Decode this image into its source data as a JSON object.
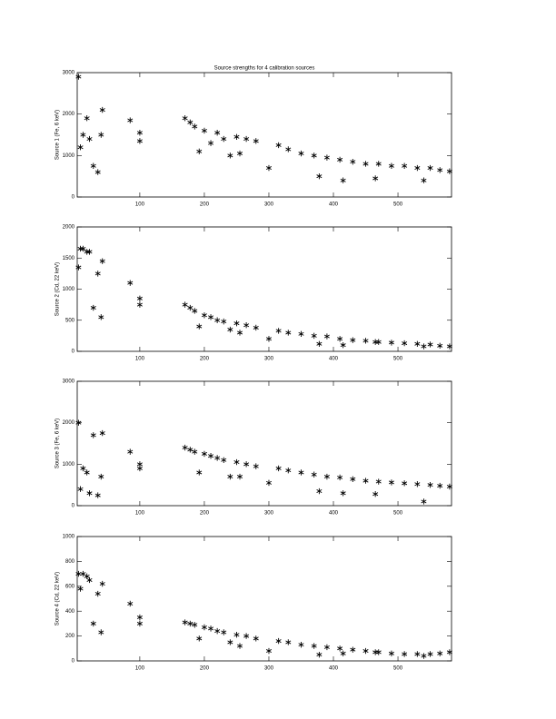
{
  "chart_data": [
    {
      "type": "scatter",
      "title": "Source strengths for 4 calibration sources",
      "y_label": "Source 1 (Fe, 6 keV)",
      "x": [
        5,
        8,
        12,
        18,
        22,
        28,
        35,
        40,
        42,
        85,
        100,
        100,
        170,
        178,
        185,
        192,
        200,
        210,
        220,
        230,
        240,
        250,
        255,
        265,
        280,
        300,
        315,
        330,
        350,
        370,
        378,
        390,
        410,
        415,
        430,
        450,
        465,
        470,
        490,
        510,
        530,
        540,
        550,
        565,
        580
      ],
      "values": [
        2900,
        1200,
        1500,
        1900,
        1400,
        750,
        600,
        1500,
        2100,
        1850,
        1550,
        1350,
        1900,
        1800,
        1700,
        1100,
        1600,
        1300,
        1550,
        1400,
        1000,
        1450,
        1050,
        1400,
        1350,
        700,
        1250,
        1150,
        1050,
        1000,
        500,
        950,
        900,
        400,
        850,
        800,
        450,
        800,
        750,
        750,
        700,
        400,
        700,
        650,
        620
      ],
      "xlim": [
        3,
        583
      ],
      "xticks": [
        100,
        200,
        300,
        400,
        500
      ],
      "ylim": [
        0,
        3000
      ],
      "yticks": [
        0,
        1000,
        2000,
        3000
      ],
      "color": "#000000"
    },
    {
      "type": "scatter",
      "y_label": "Source 2 (Cd, 22 keV)",
      "x": [
        5,
        8,
        12,
        18,
        22,
        28,
        35,
        40,
        42,
        85,
        100,
        100,
        170,
        178,
        185,
        192,
        200,
        210,
        220,
        230,
        240,
        250,
        255,
        265,
        280,
        300,
        315,
        330,
        350,
        370,
        378,
        390,
        410,
        415,
        430,
        450,
        465,
        470,
        490,
        510,
        530,
        540,
        550,
        565,
        580
      ],
      "values": [
        1350,
        1650,
        1650,
        1600,
        1600,
        700,
        1250,
        550,
        1450,
        1100,
        850,
        750,
        750,
        700,
        650,
        400,
        580,
        550,
        500,
        480,
        350,
        450,
        300,
        420,
        380,
        200,
        330,
        300,
        280,
        250,
        120,
        240,
        200,
        100,
        180,
        170,
        150,
        150,
        140,
        130,
        120,
        80,
        110,
        90,
        80
      ],
      "xlim": [
        3,
        583
      ],
      "xticks": [
        100,
        200,
        300,
        400,
        500
      ],
      "ylim": [
        0,
        2000
      ],
      "yticks": [
        0,
        500,
        1000,
        1500,
        2000
      ],
      "color": "#000000"
    },
    {
      "type": "scatter",
      "y_label": "Source 3 (Fe, 6 keV)",
      "x": [
        5,
        8,
        12,
        18,
        22,
        28,
        35,
        40,
        42,
        85,
        100,
        100,
        170,
        178,
        185,
        192,
        200,
        210,
        220,
        230,
        240,
        250,
        255,
        265,
        280,
        300,
        315,
        330,
        350,
        370,
        378,
        390,
        410,
        415,
        430,
        450,
        465,
        470,
        490,
        510,
        530,
        540,
        550,
        565,
        580
      ],
      "values": [
        2000,
        400,
        900,
        800,
        300,
        1700,
        250,
        700,
        1750,
        1300,
        1000,
        900,
        1400,
        1350,
        1300,
        800,
        1250,
        1200,
        1150,
        1100,
        700,
        1050,
        700,
        1000,
        950,
        550,
        900,
        850,
        800,
        750,
        350,
        700,
        680,
        300,
        640,
        600,
        280,
        580,
        560,
        540,
        520,
        100,
        500,
        480,
        460
      ],
      "xlim": [
        3,
        583
      ],
      "xticks": [
        100,
        200,
        300,
        400,
        500
      ],
      "ylim": [
        0,
        3000
      ],
      "yticks": [
        0,
        1000,
        2000,
        3000
      ],
      "color": "#000000"
    },
    {
      "type": "scatter",
      "y_label": "Source 4 (Cd, 22 keV)",
      "x": [
        5,
        8,
        12,
        18,
        22,
        28,
        35,
        40,
        42,
        85,
        100,
        100,
        170,
        178,
        185,
        192,
        200,
        210,
        220,
        230,
        240,
        250,
        255,
        265,
        280,
        300,
        315,
        330,
        350,
        370,
        378,
        390,
        410,
        415,
        430,
        450,
        465,
        470,
        490,
        510,
        530,
        540,
        550,
        565,
        580
      ],
      "values": [
        700,
        580,
        700,
        680,
        650,
        300,
        540,
        230,
        620,
        460,
        350,
        300,
        310,
        300,
        290,
        180,
        270,
        260,
        240,
        230,
        150,
        210,
        120,
        200,
        180,
        80,
        160,
        150,
        130,
        120,
        50,
        110,
        100,
        60,
        90,
        80,
        70,
        70,
        60,
        55,
        55,
        40,
        55,
        60,
        70
      ],
      "xlim": [
        3,
        583
      ],
      "xticks": [
        100,
        200,
        300,
        400,
        500
      ],
      "ylim": [
        0,
        1000
      ],
      "yticks": [
        0,
        200,
        400,
        600,
        800,
        1000
      ],
      "color": "#000000"
    }
  ]
}
